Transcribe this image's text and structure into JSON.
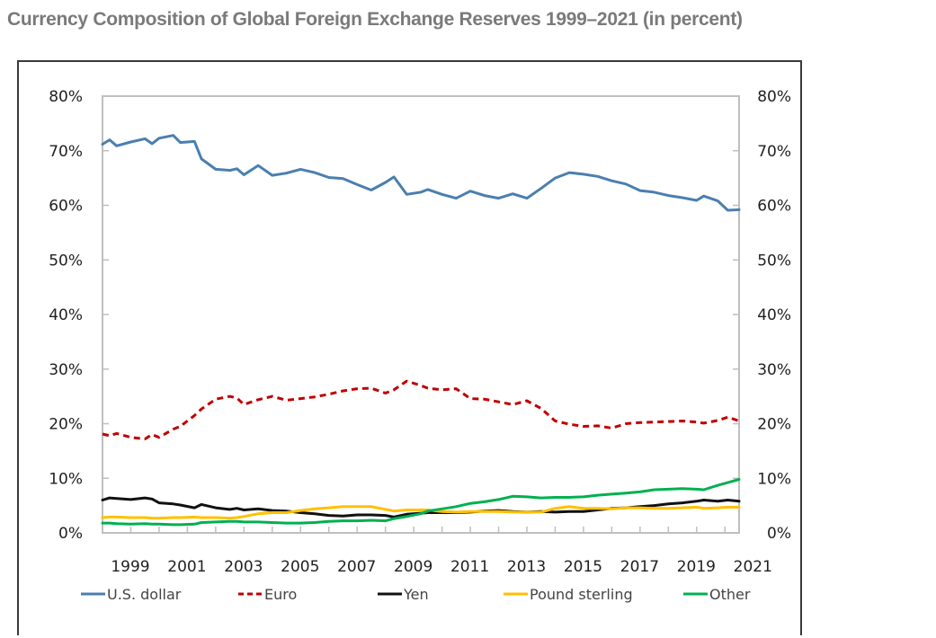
{
  "chart_data": {
    "type": "line",
    "title": "Currency Composition of Global Foreign Exchange Reserves 1999–2021 (in percent)",
    "xlabel": "",
    "ylabel": "",
    "ylim": [
      0,
      80
    ],
    "xlim": [
      1999,
      2021.5
    ],
    "yticks": [
      "0%",
      "10%",
      "20%",
      "30%",
      "40%",
      "50%",
      "60%",
      "70%",
      "80%"
    ],
    "ytick_values": [
      0,
      10,
      20,
      30,
      40,
      50,
      60,
      70,
      80
    ],
    "xticks": [
      "1999",
      "2001",
      "2003",
      "2005",
      "2007",
      "2009",
      "2011",
      "2013",
      "2015",
      "2017",
      "2019",
      "2021"
    ],
    "grid": false,
    "secondary_y_axis": true,
    "legend_position": "bottom",
    "x": [
      1999.0,
      1999.25,
      1999.5,
      2000.0,
      2000.5,
      2000.75,
      2001.0,
      2001.5,
      2001.75,
      2002.25,
      2002.5,
      2003.0,
      2003.5,
      2003.75,
      2004.0,
      2004.5,
      2005.0,
      2005.5,
      2006.0,
      2006.5,
      2007.0,
      2007.5,
      2008.0,
      2008.5,
      2009.0,
      2009.3,
      2009.75,
      2010.25,
      2010.5,
      2011.0,
      2011.5,
      2012.0,
      2012.5,
      2013.0,
      2013.5,
      2014.0,
      2014.5,
      2015.0,
      2015.5,
      2016.0,
      2016.5,
      2017.0,
      2017.5,
      2018.0,
      2018.5,
      2019.0,
      2019.5,
      2020.0,
      2020.25,
      2020.75,
      2021.1,
      2021.5
    ],
    "series": [
      {
        "name": "U.S. dollar",
        "color": "#4a7fb0",
        "dash": "solid",
        "values": [
          71.2,
          72.0,
          70.9,
          71.6,
          72.2,
          71.3,
          72.3,
          72.8,
          71.5,
          71.7,
          68.5,
          66.6,
          66.4,
          66.7,
          65.6,
          67.3,
          65.5,
          65.9,
          66.6,
          66.0,
          65.1,
          64.9,
          63.8,
          62.8,
          64.2,
          65.2,
          62.0,
          62.4,
          62.9,
          62.0,
          61.3,
          62.6,
          61.8,
          61.3,
          62.1,
          61.3,
          63.1,
          65.0,
          66.0,
          65.7,
          65.3,
          64.5,
          63.9,
          62.7,
          62.4,
          61.8,
          61.4,
          60.9,
          61.7,
          60.8,
          59.1,
          59.2
        ]
      },
      {
        "name": "Euro",
        "color": "#c00000",
        "dash": "dashed",
        "values": [
          18.1,
          17.8,
          18.2,
          17.5,
          17.2,
          18.0,
          17.5,
          19.0,
          19.5,
          21.5,
          22.7,
          24.5,
          25.0,
          24.7,
          23.5,
          24.4,
          25.0,
          24.3,
          24.6,
          24.9,
          25.4,
          26.0,
          26.4,
          26.5,
          25.6,
          26.2,
          27.8,
          27.0,
          26.5,
          26.2,
          26.4,
          24.6,
          24.5,
          24.0,
          23.5,
          24.2,
          22.8,
          20.5,
          19.9,
          19.5,
          19.6,
          19.2,
          20.0,
          20.2,
          20.3,
          20.4,
          20.5,
          20.3,
          20.1,
          20.6,
          21.2,
          20.5
        ]
      },
      {
        "name": "Yen",
        "color": "#111111",
        "dash": "solid",
        "values": [
          6.0,
          6.4,
          6.3,
          6.1,
          6.4,
          6.2,
          5.5,
          5.3,
          5.1,
          4.6,
          5.2,
          4.6,
          4.3,
          4.5,
          4.2,
          4.4,
          4.1,
          4.0,
          3.7,
          3.5,
          3.2,
          3.1,
          3.3,
          3.3,
          3.2,
          2.9,
          3.4,
          3.6,
          3.7,
          3.7,
          3.7,
          3.8,
          4.0,
          4.1,
          3.9,
          3.8,
          3.9,
          3.8,
          3.9,
          3.9,
          4.2,
          4.5,
          4.6,
          4.8,
          5.0,
          5.3,
          5.5,
          5.8,
          6.0,
          5.8,
          6.0,
          5.8
        ]
      },
      {
        "name": "Pound sterling",
        "color": "#ffc000",
        "dash": "solid",
        "values": [
          2.8,
          2.9,
          2.9,
          2.8,
          2.8,
          2.7,
          2.7,
          2.8,
          2.8,
          2.9,
          2.8,
          2.8,
          2.7,
          2.8,
          3.0,
          3.5,
          3.7,
          3.7,
          4.1,
          4.4,
          4.6,
          4.8,
          4.8,
          4.8,
          4.3,
          4.0,
          4.2,
          4.2,
          4.2,
          3.9,
          3.8,
          3.9,
          3.9,
          3.9,
          3.8,
          3.8,
          3.8,
          4.5,
          4.8,
          4.5,
          4.5,
          4.4,
          4.6,
          4.6,
          4.5,
          4.5,
          4.6,
          4.7,
          4.5,
          4.6,
          4.7,
          4.7
        ]
      },
      {
        "name": "Other",
        "color": "#00b050",
        "dash": "solid",
        "values": [
          1.8,
          1.8,
          1.7,
          1.6,
          1.7,
          1.6,
          1.6,
          1.5,
          1.5,
          1.6,
          1.9,
          2.0,
          2.1,
          2.1,
          2.0,
          2.0,
          1.9,
          1.8,
          1.8,
          1.9,
          2.1,
          2.2,
          2.2,
          2.3,
          2.2,
          2.6,
          3.0,
          3.5,
          4.0,
          4.4,
          4.8,
          5.4,
          5.7,
          6.1,
          6.7,
          6.6,
          6.4,
          6.5,
          6.5,
          6.6,
          6.9,
          7.1,
          7.3,
          7.5,
          7.9,
          8.0,
          8.1,
          8.0,
          7.9,
          8.7,
          9.2,
          9.8
        ]
      }
    ]
  }
}
